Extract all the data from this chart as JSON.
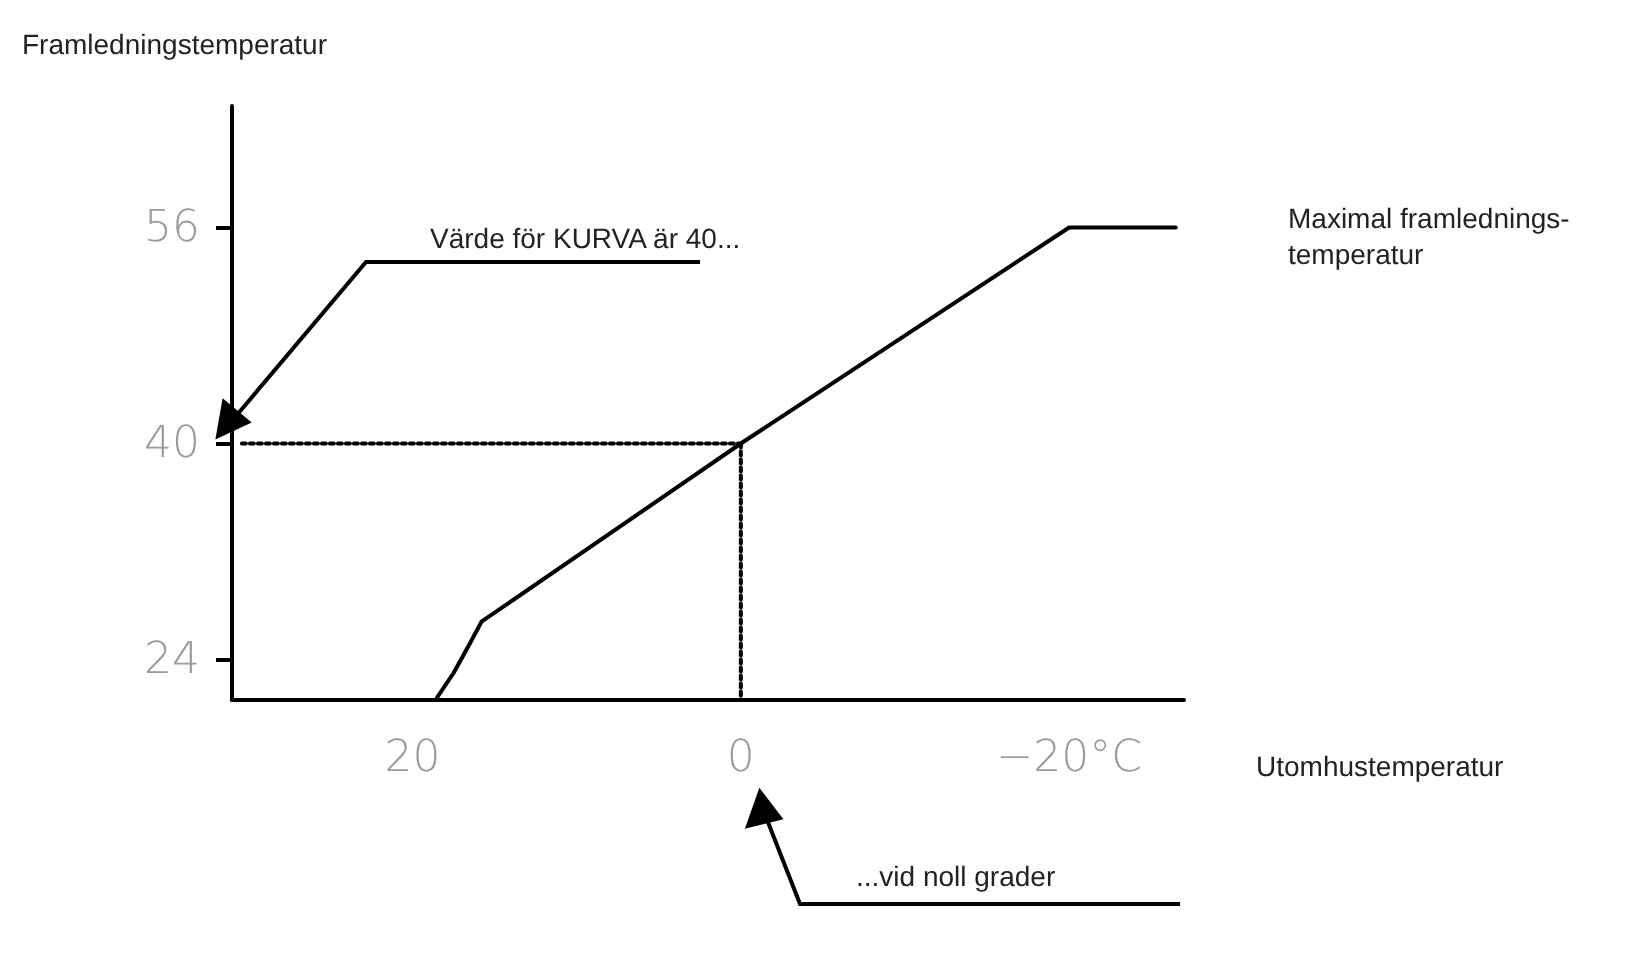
{
  "chart_data": {
    "type": "line",
    "ylabel": "Framledningstemperatur",
    "xlabel": "Utomhustemperatur",
    "xlim": [
      31,
      -27
    ],
    "ylim": [
      21,
      65
    ],
    "xticks": [
      20,
      0,
      {
        "value": -20,
        "label": "−20°C"
      }
    ],
    "yticks": [
      24,
      40,
      56
    ],
    "marker": "none",
    "grid": false,
    "series": [
      {
        "color": "#000000",
        "line_style": "solid",
        "x": [
          18.5,
          17.5,
          16.5,
          15.8,
          0,
          -20,
          -26.5
        ],
        "values": [
          21.2,
          23,
          25.2,
          26.8,
          40,
          56,
          56
        ]
      },
      {
        "color": "#000000",
        "line_style": "dotted",
        "x": [
          30.4,
          0
        ],
        "values": [
          40,
          40
        ]
      },
      {
        "color": "#000000",
        "line_style": "dotted",
        "x": [
          0,
          0
        ],
        "values": [
          40,
          21
        ]
      }
    ],
    "annotations": [
      "Maximal framlednings-\ntemperatur",
      "Värde för KURVA är 40...",
      "...vid noll grader"
    ]
  }
}
